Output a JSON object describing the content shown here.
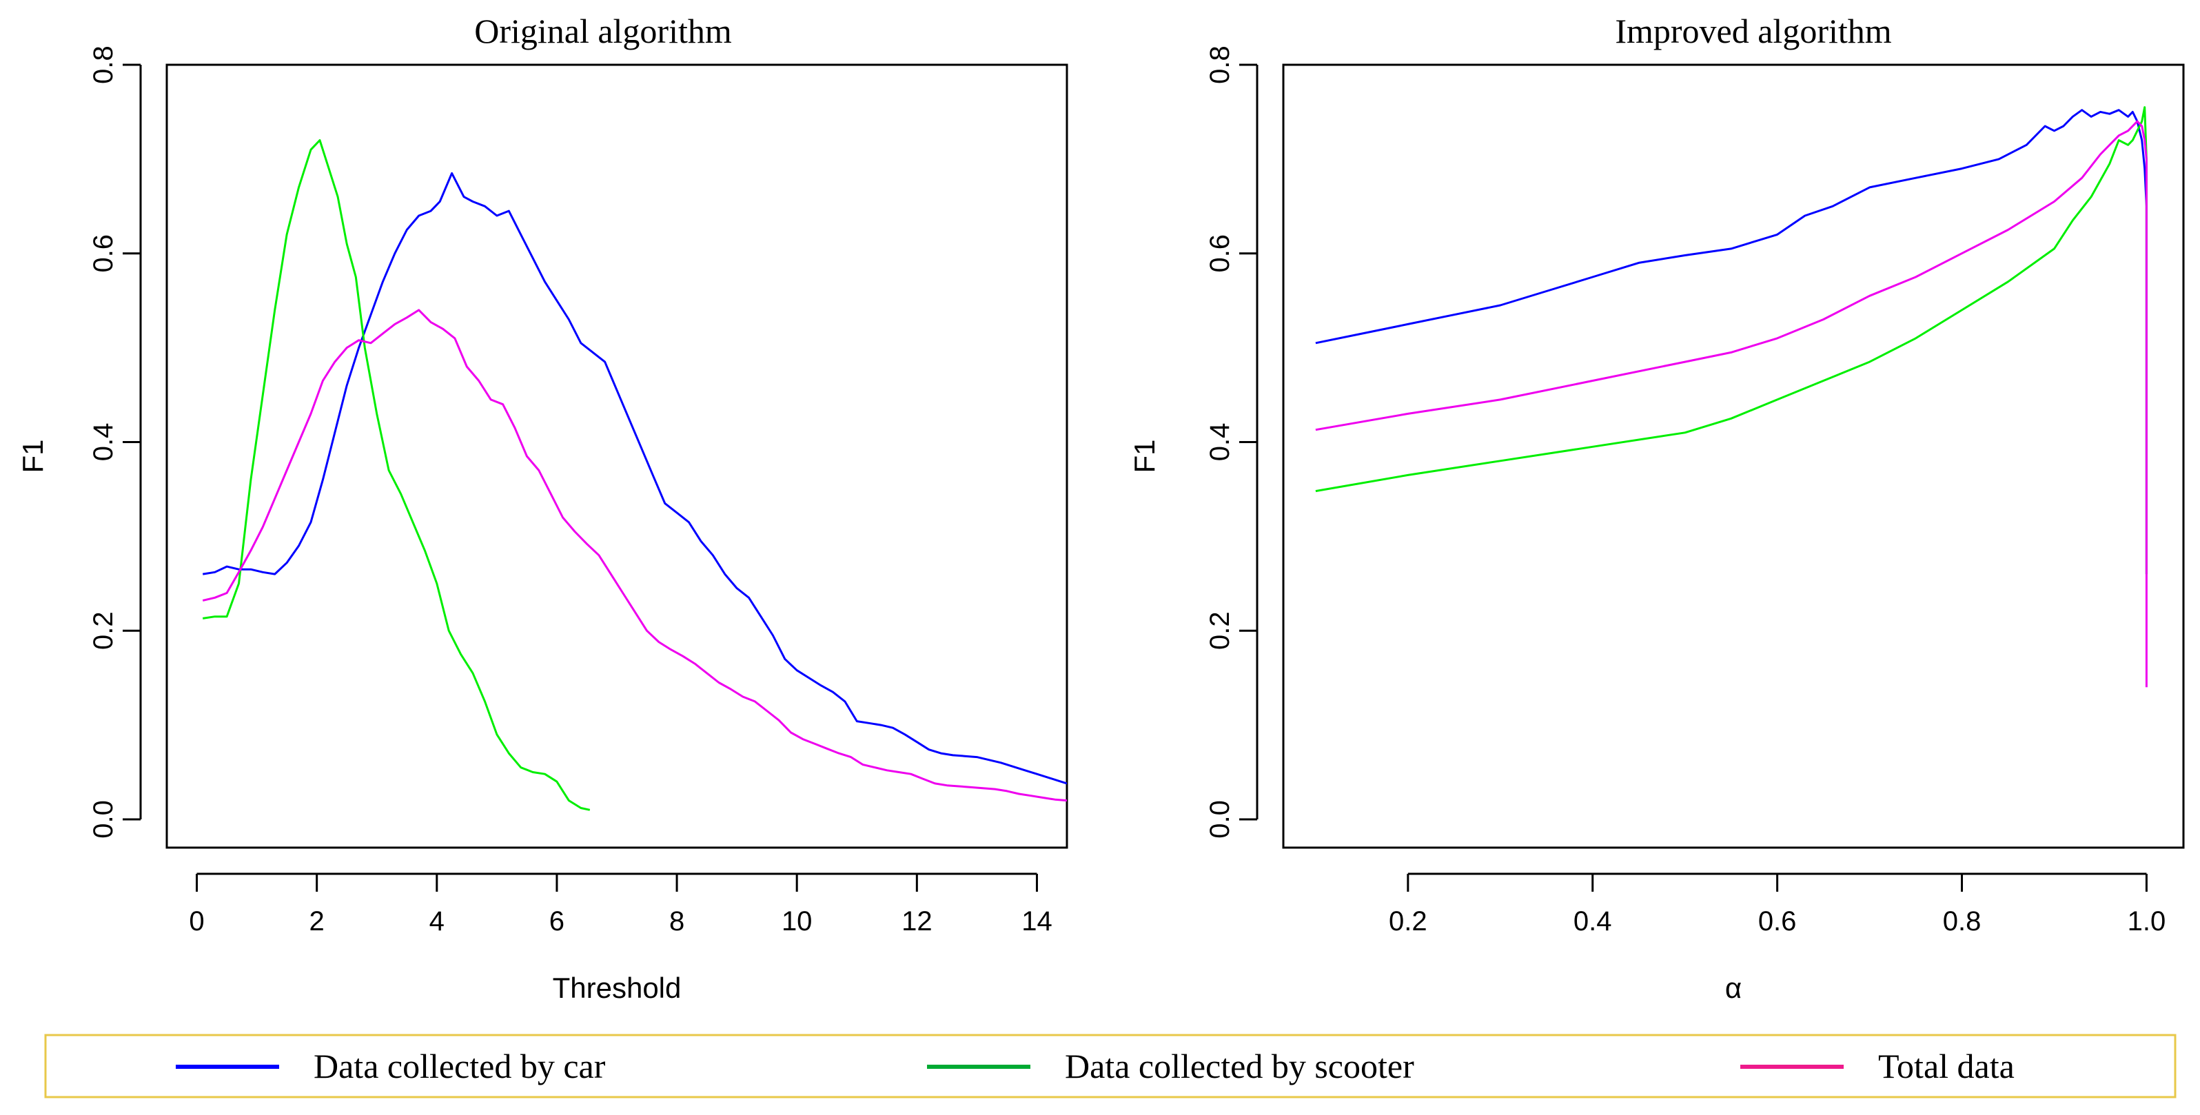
{
  "chart_data": [
    {
      "type": "line",
      "title": "Original algorithm",
      "xlabel": "Threshold",
      "ylabel": "F1",
      "xlim": [
        -0.5,
        14.5
      ],
      "ylim": [
        -0.03,
        0.8
      ],
      "xticks": [
        0,
        2,
        4,
        6,
        8,
        10,
        12,
        14
      ],
      "xtick_labels": [
        "0",
        "2",
        "4",
        "6",
        "8",
        "10",
        "12",
        "14"
      ],
      "yticks": [
        0.0,
        0.2,
        0.4,
        0.6,
        0.8
      ],
      "ytick_labels": [
        "0.0",
        "0.2",
        "0.4",
        "0.6",
        "0.8"
      ],
      "series": [
        {
          "name": "Data collected by car",
          "color": "#0000FF",
          "x": [
            0.1,
            0.3,
            0.5,
            0.7,
            0.9,
            1.1,
            1.3,
            1.5,
            1.7,
            1.9,
            2.1,
            2.3,
            2.5,
            2.7,
            2.9,
            3.1,
            3.3,
            3.5,
            3.7,
            3.9,
            4.05,
            4.25,
            4.45,
            4.6,
            4.8,
            5.0,
            5.2,
            5.4,
            5.6,
            5.8,
            6.0,
            6.2,
            6.4,
            6.6,
            6.8,
            7.0,
            7.2,
            7.4,
            7.6,
            7.8,
            8.0,
            8.2,
            8.4,
            8.6,
            8.8,
            9.0,
            9.2,
            9.4,
            9.6,
            9.8,
            10.0,
            10.2,
            10.4,
            10.6,
            10.8,
            11.0,
            11.2,
            11.4,
            11.6,
            11.8,
            12.0,
            12.2,
            12.4,
            12.6,
            12.8,
            13.0,
            13.2,
            13.4,
            13.6,
            13.8,
            14.0,
            14.2,
            14.4,
            14.5
          ],
          "y": [
            0.26,
            0.262,
            0.268,
            0.265,
            0.265,
            0.262,
            0.26,
            0.272,
            0.29,
            0.315,
            0.36,
            0.41,
            0.46,
            0.5,
            0.535,
            0.57,
            0.6,
            0.625,
            0.64,
            0.645,
            0.655,
            0.685,
            0.66,
            0.655,
            0.65,
            0.64,
            0.645,
            0.62,
            0.595,
            0.57,
            0.55,
            0.53,
            0.505,
            0.495,
            0.485,
            0.455,
            0.425,
            0.395,
            0.365,
            0.335,
            0.325,
            0.315,
            0.295,
            0.28,
            0.26,
            0.245,
            0.235,
            0.215,
            0.195,
            0.17,
            0.158,
            0.15,
            0.142,
            0.135,
            0.125,
            0.104,
            0.102,
            0.1,
            0.097,
            0.09,
            0.082,
            0.074,
            0.07,
            0.068,
            0.067,
            0.066,
            0.063,
            0.06,
            0.056,
            0.052,
            0.048,
            0.044,
            0.04,
            0.038
          ]
        },
        {
          "name": "Data collected by scooter",
          "color": "#00EE00",
          "x": [
            0.1,
            0.3,
            0.5,
            0.7,
            0.9,
            1.1,
            1.3,
            1.5,
            1.7,
            1.9,
            2.05,
            2.2,
            2.35,
            2.5,
            2.65,
            2.8,
            3.0,
            3.2,
            3.4,
            3.6,
            3.8,
            4.0,
            4.2,
            4.4,
            4.6,
            4.8,
            5.0,
            5.2,
            5.4,
            5.6,
            5.8,
            6.0,
            6.2,
            6.4,
            6.55
          ],
          "y": [
            0.213,
            0.215,
            0.215,
            0.25,
            0.36,
            0.45,
            0.54,
            0.62,
            0.67,
            0.71,
            0.72,
            0.69,
            0.66,
            0.61,
            0.575,
            0.5,
            0.43,
            0.37,
            0.345,
            0.315,
            0.285,
            0.25,
            0.2,
            0.175,
            0.155,
            0.125,
            0.09,
            0.07,
            0.055,
            0.05,
            0.048,
            0.04,
            0.02,
            0.012,
            0.01
          ]
        },
        {
          "name": "Total data",
          "color": "#EE00EE",
          "x": [
            0.1,
            0.3,
            0.5,
            0.7,
            0.9,
            1.1,
            1.3,
            1.5,
            1.7,
            1.9,
            2.1,
            2.3,
            2.5,
            2.7,
            2.9,
            3.1,
            3.3,
            3.5,
            3.7,
            3.9,
            4.1,
            4.3,
            4.5,
            4.7,
            4.9,
            5.1,
            5.3,
            5.5,
            5.7,
            5.9,
            6.1,
            6.3,
            6.5,
            6.7,
            6.9,
            7.1,
            7.3,
            7.5,
            7.7,
            7.9,
            8.1,
            8.3,
            8.5,
            8.7,
            8.9,
            9.1,
            9.3,
            9.5,
            9.7,
            9.9,
            10.1,
            10.3,
            10.5,
            10.7,
            10.9,
            11.1,
            11.3,
            11.5,
            11.7,
            11.9,
            12.1,
            12.3,
            12.5,
            12.7,
            12.9,
            13.1,
            13.3,
            13.5,
            13.7,
            13.9,
            14.1,
            14.3,
            14.5
          ],
          "y": [
            0.232,
            0.235,
            0.24,
            0.262,
            0.285,
            0.31,
            0.34,
            0.37,
            0.4,
            0.43,
            0.465,
            0.485,
            0.5,
            0.508,
            0.505,
            0.515,
            0.525,
            0.532,
            0.54,
            0.527,
            0.52,
            0.51,
            0.48,
            0.465,
            0.445,
            0.44,
            0.415,
            0.385,
            0.37,
            0.345,
            0.32,
            0.305,
            0.292,
            0.28,
            0.26,
            0.24,
            0.22,
            0.2,
            0.188,
            0.18,
            0.173,
            0.165,
            0.155,
            0.145,
            0.138,
            0.13,
            0.125,
            0.115,
            0.105,
            0.092,
            0.085,
            0.08,
            0.075,
            0.07,
            0.066,
            0.058,
            0.055,
            0.052,
            0.05,
            0.048,
            0.043,
            0.038,
            0.036,
            0.035,
            0.034,
            0.033,
            0.032,
            0.03,
            0.027,
            0.025,
            0.023,
            0.021,
            0.02
          ]
        }
      ]
    },
    {
      "type": "line",
      "title": "Improved algorithm",
      "xlabel": "α",
      "ylabel": "F1",
      "xlim": [
        0.065,
        1.04
      ],
      "ylim": [
        -0.03,
        0.8
      ],
      "xticks": [
        0.2,
        0.4,
        0.6,
        0.8,
        1.0
      ],
      "xtick_labels": [
        "0.2",
        "0.4",
        "0.6",
        "0.8",
        "1.0"
      ],
      "yticks": [
        0.0,
        0.2,
        0.4,
        0.6,
        0.8
      ],
      "ytick_labels": [
        "0.0",
        "0.2",
        "0.4",
        "0.6",
        "0.8"
      ],
      "series": [
        {
          "name": "Data collected by car",
          "color": "#0000FF",
          "x": [
            0.1,
            0.15,
            0.2,
            0.25,
            0.3,
            0.35,
            0.4,
            0.45,
            0.5,
            0.55,
            0.6,
            0.63,
            0.66,
            0.7,
            0.75,
            0.8,
            0.84,
            0.87,
            0.89,
            0.9,
            0.91,
            0.92,
            0.93,
            0.94,
            0.95,
            0.96,
            0.97,
            0.98,
            0.985,
            0.99,
            0.995,
            0.998,
            1.0,
            1.0
          ],
          "y": [
            0.505,
            0.515,
            0.525,
            0.535,
            0.545,
            0.56,
            0.575,
            0.59,
            0.598,
            0.605,
            0.62,
            0.64,
            0.65,
            0.67,
            0.68,
            0.69,
            0.7,
            0.715,
            0.735,
            0.73,
            0.735,
            0.745,
            0.752,
            0.745,
            0.75,
            0.748,
            0.752,
            0.745,
            0.75,
            0.74,
            0.72,
            0.69,
            0.65,
            0.26
          ]
        },
        {
          "name": "Data collected by scooter",
          "color": "#00EE00",
          "x": [
            0.1,
            0.2,
            0.3,
            0.4,
            0.5,
            0.55,
            0.6,
            0.65,
            0.7,
            0.75,
            0.8,
            0.85,
            0.9,
            0.92,
            0.94,
            0.96,
            0.97,
            0.98,
            0.985,
            0.99,
            0.995,
            0.998,
            1.0,
            1.0
          ],
          "y": [
            0.348,
            0.365,
            0.38,
            0.395,
            0.41,
            0.425,
            0.445,
            0.465,
            0.485,
            0.51,
            0.54,
            0.57,
            0.605,
            0.635,
            0.66,
            0.695,
            0.72,
            0.715,
            0.72,
            0.73,
            0.74,
            0.755,
            0.7,
            0.26
          ]
        },
        {
          "name": "Total data",
          "color": "#EE00EE",
          "x": [
            0.1,
            0.2,
            0.3,
            0.4,
            0.5,
            0.55,
            0.6,
            0.65,
            0.7,
            0.75,
            0.8,
            0.85,
            0.9,
            0.93,
            0.95,
            0.97,
            0.98,
            0.99,
            0.995,
            0.998,
            1.0,
            1.0
          ],
          "y": [
            0.413,
            0.43,
            0.445,
            0.465,
            0.485,
            0.495,
            0.51,
            0.53,
            0.555,
            0.575,
            0.6,
            0.625,
            0.655,
            0.68,
            0.705,
            0.725,
            0.73,
            0.74,
            0.735,
            0.72,
            0.7,
            0.14
          ]
        }
      ]
    }
  ],
  "legend": {
    "border_color": "#E8C84A",
    "items": [
      {
        "label": "Data collected by car",
        "color": "#0000FF"
      },
      {
        "label": "Data collected by scooter",
        "color": "#00AA33"
      },
      {
        "label": "Total data",
        "color": "#EE1A8C"
      }
    ]
  }
}
